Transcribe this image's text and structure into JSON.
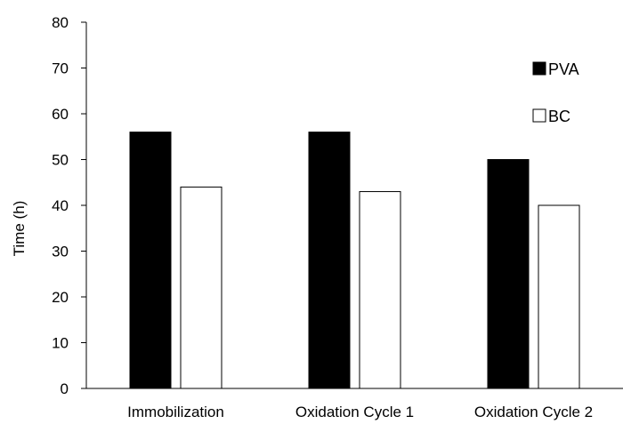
{
  "chart_data": {
    "type": "bar",
    "title": "",
    "xlabel": "",
    "ylabel": "Time (h)",
    "ylim": [
      0,
      80
    ],
    "yticks": [
      0,
      10,
      20,
      30,
      40,
      50,
      60,
      70,
      80
    ],
    "grid": false,
    "legend_position": "top-right",
    "categories": [
      "Immobilization",
      "Oxidation Cycle 1",
      "Oxidation Cycle 2"
    ],
    "series": [
      {
        "name": "PVA",
        "values": [
          56,
          56,
          50
        ],
        "fill": "#000000",
        "stroke": "#000000"
      },
      {
        "name": "BC",
        "values": [
          44,
          43,
          40
        ],
        "fill": "#ffffff",
        "stroke": "#000000"
      }
    ]
  }
}
